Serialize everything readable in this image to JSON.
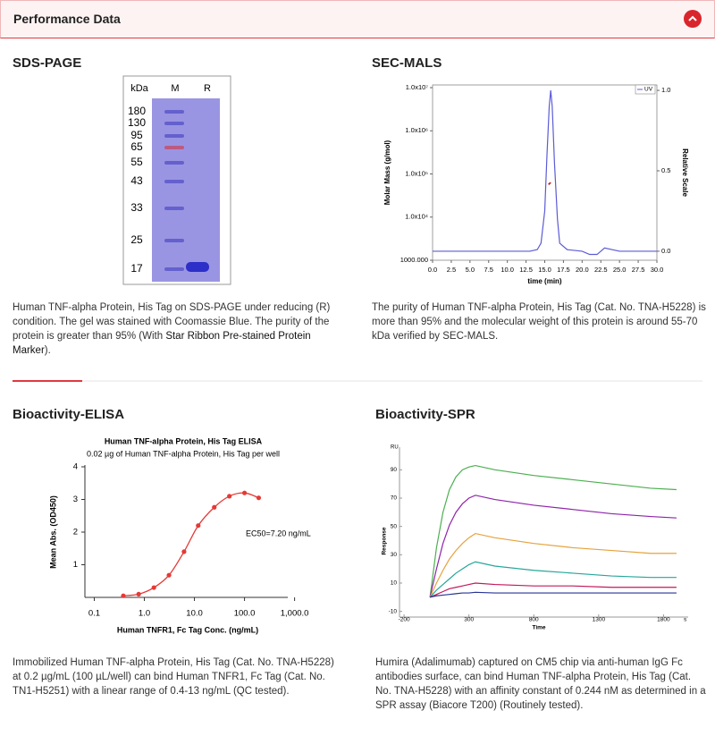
{
  "header": {
    "title": "Performance Data"
  },
  "sds_page": {
    "title": "SDS-PAGE",
    "gel": {
      "unit_label": "kDa",
      "lanes": [
        "M",
        "R"
      ],
      "marker_labels": [
        "180",
        "130",
        "95",
        "65",
        "55",
        "43",
        "33",
        "25",
        "17"
      ]
    },
    "caption": [
      "Human TNF-alpha Protein, His Tag on SDS-PAGE under reducing (R) condition. The gel was stained with Coomassie Blue. The purity of the protein is greater than 95% (With ",
      "Star Ribbon Pre-stained Protein Marker",
      ")."
    ]
  },
  "sec_mals": {
    "title": "SEC-MALS",
    "chart_data": {
      "type": "line",
      "xlabel": "time (min)",
      "ylabel": "Molar Mass (g/mol)",
      "y2label": "Relative Scale",
      "yscale": "log",
      "xlim": [
        0,
        30
      ],
      "xticks": [
        {
          "value": 0,
          "label": "0.0"
        },
        2.5,
        {
          "value": 5,
          "label": "5.0"
        },
        7.5,
        {
          "value": 10,
          "label": "10.0"
        },
        12.5,
        {
          "value": 15,
          "label": "15.0"
        },
        17.5,
        {
          "value": 20,
          "label": "20.0"
        },
        22.5,
        {
          "value": 25,
          "label": "25.0"
        },
        27.5,
        {
          "value": 30,
          "label": "30.0"
        }
      ],
      "ylim": [
        1000,
        10000000
      ],
      "yticks": [
        {
          "value": 1000,
          "label": "1000.000"
        },
        {
          "value": 10000,
          "label": "1.0x10⁴"
        },
        {
          "value": 100000,
          "label": "1.0x10⁵"
        },
        {
          "value": 1000000,
          "label": "1.0x10⁶"
        },
        {
          "value": 10000000,
          "label": "1.0x10⁷"
        }
      ],
      "y2lim": [
        -0.056,
        1.017
      ],
      "y2ticks": [
        {
          "value": 0,
          "label": "0.0"
        },
        0.5,
        {
          "value": 1,
          "label": "1.0"
        }
      ],
      "legend": "top-right",
      "series": [
        {
          "name": "UV",
          "color": "#5b5bd6",
          "axis": "y2",
          "x": [
            0,
            5,
            10,
            13,
            14,
            14.5,
            15,
            15.3,
            15.6,
            15.8,
            16,
            16.3,
            16.7,
            17,
            18,
            20,
            21,
            22,
            23,
            25,
            30
          ],
          "values": [
            0,
            0,
            0,
            0,
            0.01,
            0.05,
            0.25,
            0.6,
            0.9,
            1.0,
            0.9,
            0.55,
            0.2,
            0.05,
            0.01,
            0,
            -0.02,
            -0.02,
            0.02,
            0,
            0
          ]
        },
        {
          "color": "#cc2222",
          "x": [
            15.5,
            15.6,
            15.7,
            15.8
          ],
          "values": [
            57000,
            59000,
            61000,
            63000
          ]
        }
      ]
    },
    "caption": "The purity of Human TNF-alpha Protein, His Tag (Cat. No. TNA-H5228) is more than 95% and the molecular weight of this protein is around 55-70 kDa verified by SEC-MALS."
  },
  "elisa": {
    "title": "Bioactivity-ELISA",
    "chart_data": {
      "type": "scatter",
      "title": "Human TNF-alpha Protein, His Tag ELISA",
      "subtitle": "0.02 µg of Human TNF-alpha Protein, His Tag per well",
      "xlabel": "Human TNFR1, Fc Tag Conc. (ng/mL)",
      "ylabel": "Mean Abs. (OD450)",
      "annotation": "EC50=7.20 ng/mL",
      "xscale": "log",
      "xlim": [
        0.065,
        1300
      ],
      "xticks": [
        0.1,
        {
          "value": 1,
          "label": "1.0"
        },
        {
          "value": 10,
          "label": "10.0"
        },
        {
          "value": 100,
          "label": "100.0"
        },
        {
          "value": 1000,
          "label": "1,000.0"
        }
      ],
      "ylim": [
        0,
        4
      ],
      "yticks": [
        1,
        2,
        3,
        4
      ],
      "color": "#e53935",
      "x": [
        0.38,
        0.77,
        1.55,
        3.1,
        6.2,
        11.9,
        24.9,
        49.9,
        100,
        192
      ],
      "values": [
        0.05,
        0.1,
        0.3,
        0.68,
        1.4,
        2.2,
        2.76,
        3.1,
        3.2,
        3.05
      ]
    },
    "caption": "Immobilized Human TNF-alpha Protein, His Tag (Cat. No. TNA-H5228) at 0.2 µg/mL (100 µL/well) can bind Human TNFR1, Fc Tag (Cat. No. TN1-H5251) with a linear range of 0.4-13 ng/mL (QC tested)."
  },
  "spr": {
    "title": "Bioactivity-SPR",
    "chart_data": {
      "type": "line",
      "xlabel": "Time",
      "ylabel": "Response",
      "x_unit": "s",
      "y_unit": "RU",
      "xlim": [
        -235,
        1990
      ],
      "xticks": [
        -200,
        300,
        800,
        1300,
        1800
      ],
      "ylim": [
        -14,
        106
      ],
      "yticks": [
        -10,
        10,
        30,
        50,
        70,
        90
      ],
      "x": [
        0,
        50,
        100,
        150,
        200,
        250,
        300,
        350,
        500,
        800,
        1100,
        1400,
        1700,
        1900
      ],
      "series": [
        {
          "color": "#4caf50",
          "values": [
            0,
            35,
            60,
            76,
            85,
            90,
            92,
            93,
            90,
            86,
            83,
            80,
            77,
            76
          ]
        },
        {
          "color": "#8e24aa",
          "values": [
            0,
            20,
            38,
            51,
            60,
            66,
            70,
            72,
            69,
            65,
            62,
            59,
            57,
            56
          ]
        },
        {
          "color": "#e6a23c",
          "values": [
            0,
            10,
            19,
            27,
            33,
            38,
            42,
            45,
            42,
            38,
            35,
            33,
            31,
            31
          ]
        },
        {
          "color": "#26a69a",
          "values": [
            0,
            5,
            9,
            13,
            17,
            20,
            23,
            25,
            22,
            19,
            17,
            15,
            14,
            14
          ]
        },
        {
          "color": "#c2185b",
          "values": [
            0,
            2,
            4,
            6,
            7,
            8,
            9,
            10,
            9,
            8,
            8,
            7,
            7,
            7
          ]
        },
        {
          "color": "#283593",
          "values": [
            0,
            1,
            1.5,
            2,
            2.5,
            3,
            3,
            3.5,
            3,
            3,
            3,
            3,
            3,
            3
          ]
        }
      ]
    },
    "caption": "Humira (Adalimumab) captured on CM5 chip via anti-human IgG Fc antibodies surface, can bind Human TNF-alpha Protein, His Tag (Cat. No. TNA-H5228) with an affinity constant of 0.244 nM as determined in a SPR assay (Biacore T200) (Routinely tested)."
  }
}
